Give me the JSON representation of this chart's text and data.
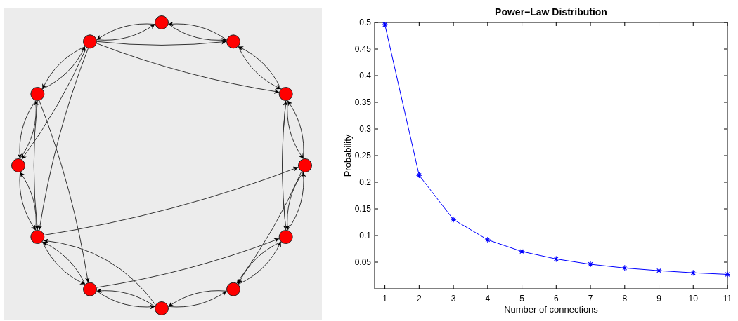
{
  "chart_data": {
    "type": "line",
    "title": "Power−Law Distribution",
    "xlabel": "Number of connections",
    "ylabel": "Probability",
    "x": [
      1,
      2,
      3,
      4,
      5,
      6,
      7,
      8,
      9,
      10,
      11
    ],
    "series": [
      {
        "color": "#0000ff",
        "values": [
          0.496,
          0.213,
          0.13,
          0.092,
          0.07,
          0.056,
          0.046,
          0.039,
          0.034,
          0.03,
          0.027
        ]
      }
    ],
    "xlim": [
      0.7,
      11
    ],
    "xticks": [
      1,
      2,
      3,
      4,
      5,
      6,
      7,
      8,
      9,
      10,
      11
    ],
    "ylim": [
      0,
      0.5
    ],
    "yticks": [
      0.05,
      0.1,
      0.15,
      0.2,
      0.25,
      0.3,
      0.35,
      0.4,
      0.45,
      0.5
    ],
    "grid": false,
    "marker": "cross",
    "line_style": "solid"
  }
}
